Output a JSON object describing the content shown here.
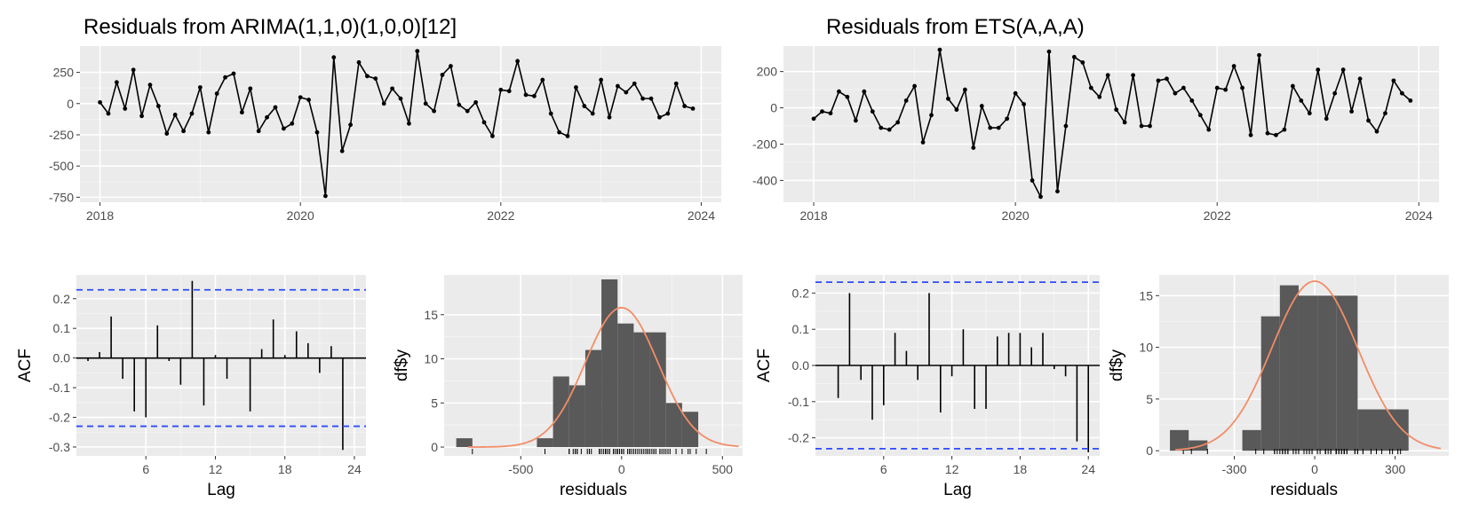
{
  "figures": [
    {
      "title": "Residuals from ARIMA(1,1,0)(1,0,0)[12]",
      "time_axis": {
        "x_ticks": [
          "2018",
          "2020",
          "2022",
          "2024"
        ],
        "y_ticks": [
          "250",
          "0",
          "-250",
          "-500",
          "-750"
        ]
      },
      "acf_axis": {
        "xlabel": "Lag",
        "ylabel": "ACF",
        "x_ticks": [
          "6",
          "12",
          "18",
          "24"
        ],
        "y_ticks": [
          "0.2",
          "0.1",
          "0.0",
          "-0.1",
          "-0.2",
          "-0.3"
        ]
      },
      "hist_axis": {
        "xlabel": "residuals",
        "ylabel": "df$y",
        "x_ticks": [
          "-500",
          "0",
          "500"
        ],
        "y_ticks": [
          "15",
          "10",
          "5",
          "0"
        ]
      }
    },
    {
      "title": "Residuals from ETS(A,A,A)",
      "time_axis": {
        "x_ticks": [
          "2018",
          "2020",
          "2022",
          "2024"
        ],
        "y_ticks": [
          "200",
          "0",
          "-200",
          "-400"
        ]
      },
      "acf_axis": {
        "xlabel": "Lag",
        "ylabel": "ACF",
        "x_ticks": [
          "6",
          "12",
          "18",
          "24"
        ],
        "y_ticks": [
          "0.2",
          "0.1",
          "0.0",
          "-0.1",
          "-0.2"
        ]
      },
      "hist_axis": {
        "xlabel": "residuals",
        "ylabel": "df$y",
        "x_ticks": [
          "-300",
          "0",
          "300"
        ],
        "y_ticks": [
          "15",
          "10",
          "5",
          "0"
        ]
      }
    }
  ],
  "chart_data": [
    {
      "type": "line",
      "title": "Residuals from ARIMA(1,1,0)(1,0,0)[12]",
      "x_start": 2018,
      "x_step_per_point": 0.0833333,
      "xlim": [
        2017.8,
        2024.2
      ],
      "ylim": [
        -790,
        460
      ],
      "x_ticks": [
        2018,
        2020,
        2022,
        2024
      ],
      "y_ticks": [
        250,
        0,
        -250,
        -500,
        -750
      ],
      "values": [
        10,
        -80,
        170,
        -40,
        270,
        -100,
        150,
        -20,
        -240,
        -90,
        -220,
        -80,
        130,
        -230,
        80,
        210,
        240,
        -70,
        120,
        -220,
        -110,
        -30,
        -200,
        -160,
        50,
        30,
        -230,
        -740,
        370,
        -380,
        -170,
        330,
        220,
        200,
        0,
        120,
        40,
        -160,
        420,
        0,
        -60,
        230,
        300,
        -10,
        -60,
        10,
        -150,
        -260,
        110,
        100,
        340,
        70,
        60,
        190,
        -80,
        -230,
        -260,
        130,
        -20,
        -80,
        190,
        -110,
        140,
        90,
        160,
        40,
        40,
        -110,
        -80,
        160,
        -20,
        -40
      ],
      "grid": true
    },
    {
      "type": "bar",
      "title": "",
      "xlabel": "Lag",
      "ylabel": "ACF",
      "xlim": [
        0,
        25
      ],
      "ylim": [
        -0.33,
        0.28
      ],
      "x_ticks": [
        6,
        12,
        18,
        24
      ],
      "y_ticks": [
        0.2,
        0.1,
        0.0,
        -0.1,
        -0.2,
        -0.3
      ],
      "lags": [
        1,
        2,
        3,
        4,
        5,
        6,
        7,
        8,
        9,
        10,
        11,
        12,
        13,
        14,
        15,
        16,
        17,
        18,
        19,
        20,
        21,
        22,
        23
      ],
      "values": [
        -0.01,
        0.02,
        0.14,
        -0.07,
        -0.18,
        -0.2,
        0.11,
        -0.01,
        -0.09,
        0.26,
        -0.16,
        0.01,
        -0.07,
        0,
        -0.18,
        0.03,
        0.13,
        0.01,
        0.09,
        0.05,
        -0.05,
        0.04,
        -0.31
      ],
      "ci": [
        0.23,
        -0.23
      ]
    },
    {
      "type": "bar",
      "title": "",
      "xlabel": "residuals",
      "ylabel": "df$y",
      "xlim": [
        -880,
        600
      ],
      "ylim": [
        -1,
        19.5
      ],
      "x_ticks": [
        -500,
        0,
        500
      ],
      "y_ticks": [
        15,
        10,
        5,
        0
      ],
      "bins": [
        [
          -820,
          -740,
          1
        ],
        [
          -420,
          -340,
          1
        ],
        [
          -340,
          -260,
          8
        ],
        [
          -260,
          -180,
          7
        ],
        [
          -180,
          -100,
          11
        ],
        [
          -100,
          -20,
          19
        ],
        [
          -20,
          60,
          14
        ],
        [
          60,
          140,
          13
        ],
        [
          140,
          220,
          13
        ],
        [
          220,
          300,
          5
        ],
        [
          300,
          380,
          4
        ]
      ],
      "density_curve": {
        "mean": 0,
        "sd": 180,
        "peak": 15.8
      }
    },
    {
      "type": "line",
      "title": "Residuals from ETS(A,A,A)",
      "x_start": 2018,
      "x_step_per_point": 0.0833333,
      "xlim": [
        2017.7,
        2024.2
      ],
      "ylim": [
        -520,
        340
      ],
      "x_ticks": [
        2018,
        2020,
        2022,
        2024
      ],
      "y_ticks": [
        200,
        0,
        -200,
        -400
      ],
      "values": [
        -60,
        -20,
        -30,
        90,
        60,
        -70,
        90,
        -20,
        -110,
        -120,
        -80,
        40,
        120,
        -190,
        -40,
        320,
        50,
        -10,
        100,
        -220,
        10,
        -110,
        -110,
        -60,
        80,
        20,
        -400,
        -490,
        310,
        -460,
        -100,
        280,
        250,
        110,
        60,
        180,
        -10,
        -80,
        180,
        -100,
        -100,
        150,
        160,
        80,
        110,
        40,
        -40,
        -120,
        110,
        100,
        230,
        110,
        -150,
        290,
        -140,
        -150,
        -120,
        120,
        40,
        -30,
        210,
        -60,
        80,
        210,
        -20,
        160,
        -70,
        -130,
        -30,
        150,
        80,
        40
      ],
      "grid": true
    },
    {
      "type": "bar",
      "title": "",
      "xlabel": "Lag",
      "ylabel": "ACF",
      "xlim": [
        0,
        25
      ],
      "ylim": [
        -0.25,
        0.25
      ],
      "x_ticks": [
        6,
        12,
        18,
        24
      ],
      "y_ticks": [
        0.2,
        0.1,
        0.0,
        -0.1,
        -0.2
      ],
      "lags": [
        1,
        2,
        3,
        4,
        5,
        6,
        7,
        8,
        9,
        10,
        11,
        12,
        13,
        14,
        15,
        16,
        17,
        18,
        19,
        20,
        21,
        22,
        23,
        24
      ],
      "values": [
        0.0,
        -0.09,
        0.2,
        -0.04,
        -0.15,
        -0.11,
        0.09,
        0.04,
        -0.04,
        0.2,
        -0.13,
        -0.03,
        0.1,
        -0.12,
        -0.12,
        0.08,
        0.09,
        0.09,
        0.05,
        0.09,
        -0.01,
        -0.03,
        -0.21,
        -0.24
      ],
      "ci": [
        0.23,
        -0.23
      ]
    },
    {
      "type": "bar",
      "title": "",
      "xlabel": "residuals",
      "ylabel": "df$y",
      "xlim": [
        -580,
        500
      ],
      "ylim": [
        -0.5,
        17
      ],
      "x_ticks": [
        -300,
        0,
        300
      ],
      "y_ticks": [
        15,
        10,
        5,
        0
      ],
      "bins": [
        [
          -540,
          -470,
          2
        ],
        [
          -470,
          -400,
          1
        ],
        [
          -270,
          -200,
          2
        ],
        [
          -200,
          -130,
          13
        ],
        [
          -130,
          -60,
          16
        ],
        [
          -60,
          10,
          15
        ],
        [
          10,
          80,
          15
        ],
        [
          80,
          160,
          15
        ],
        [
          160,
          230,
          4
        ],
        [
          230,
          350,
          4
        ]
      ],
      "density_curve": {
        "mean": 0,
        "sd": 160,
        "peak": 16.4
      }
    }
  ]
}
